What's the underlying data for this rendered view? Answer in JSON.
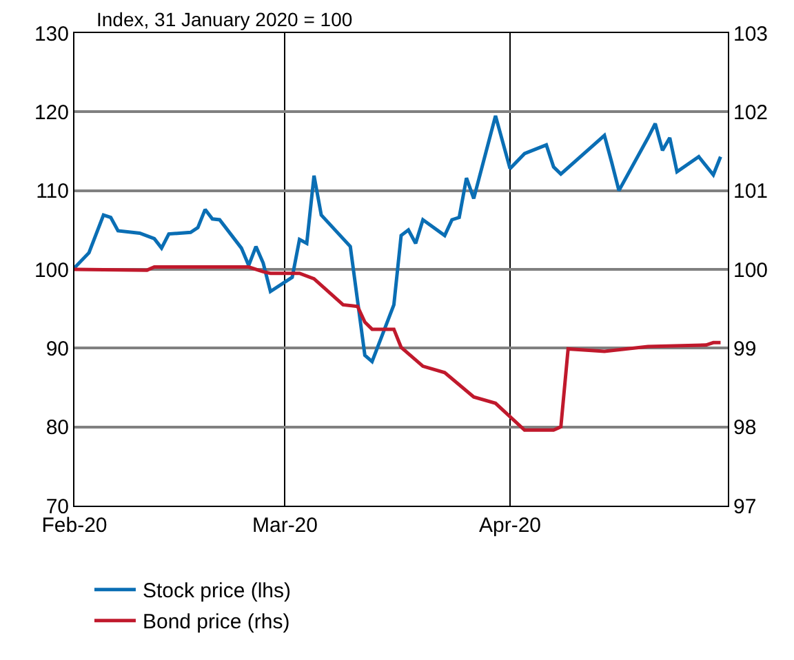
{
  "chart_data": {
    "type": "line",
    "ylabel": "Index, 31 January 2020 = 100",
    "xlim": [
      "2020-02-01",
      "2020-05-01"
    ],
    "xticks": [
      {
        "value": "2020-02-01",
        "label": "Feb-20"
      },
      {
        "value": "2020-03-01",
        "label": "Mar-20"
      },
      {
        "value": "2020-04-01",
        "label": "Apr-20"
      }
    ],
    "ylim": [
      70,
      130
    ],
    "yticks": [
      70,
      80,
      90,
      100,
      110,
      120,
      130
    ],
    "y2lim": [
      97,
      103
    ],
    "y2ticks": [
      97,
      98,
      99,
      100,
      101,
      102,
      103
    ],
    "grid": true,
    "legend": "bottom",
    "series": [
      {
        "name": "Stock price (lhs)",
        "color": "#0a6eb4",
        "x": [
          "2020-02-01",
          "2020-02-03",
          "2020-02-05",
          "2020-02-06",
          "2020-02-07",
          "2020-02-10",
          "2020-02-12",
          "2020-02-13",
          "2020-02-14",
          "2020-02-17",
          "2020-02-18",
          "2020-02-19",
          "2020-02-20",
          "2020-02-21",
          "2020-02-24",
          "2020-02-25",
          "2020-02-26",
          "2020-02-27",
          "2020-02-28",
          "2020-03-02",
          "2020-03-03",
          "2020-03-04",
          "2020-03-05",
          "2020-03-06",
          "2020-03-09",
          "2020-03-10",
          "2020-03-12",
          "2020-03-13",
          "2020-03-16",
          "2020-03-17",
          "2020-03-18",
          "2020-03-19",
          "2020-03-20",
          "2020-03-23",
          "2020-03-24",
          "2020-03-25",
          "2020-03-26",
          "2020-03-27",
          "2020-03-30",
          "2020-04-01",
          "2020-04-03",
          "2020-04-06",
          "2020-04-07",
          "2020-04-08",
          "2020-04-14",
          "2020-04-15",
          "2020-04-16",
          "2020-04-20",
          "2020-04-21",
          "2020-04-22",
          "2020-04-23",
          "2020-04-24",
          "2020-04-27",
          "2020-04-29",
          "2020-04-30"
        ],
        "values": [
          100.2,
          102.1,
          106.9,
          106.6,
          104.9,
          104.6,
          103.9,
          102.7,
          104.5,
          104.7,
          105.3,
          107.6,
          106.4,
          106.3,
          102.7,
          100.5,
          102.9,
          100.8,
          97.2,
          99.0,
          103.8,
          103.3,
          111.9,
          106.9,
          103.9,
          102.9,
          89.1,
          88.3,
          95.5,
          104.3,
          105.0,
          103.3,
          106.3,
          104.3,
          106.3,
          106.6,
          111.6,
          109.0,
          119.5,
          112.8,
          114.7,
          115.8,
          113.0,
          112.1,
          117.0,
          113.6,
          110.0,
          116.7,
          118.5,
          115.1,
          116.7,
          112.4,
          114.3,
          112.0,
          114.3
        ]
      },
      {
        "name": "Bond price (rhs)",
        "color": "#c0192c",
        "axis": "y2",
        "x": [
          "2020-02-01",
          "2020-02-11",
          "2020-02-12",
          "2020-02-25",
          "2020-02-27",
          "2020-02-28",
          "2020-03-03",
          "2020-03-05",
          "2020-03-09",
          "2020-03-11",
          "2020-03-12",
          "2020-03-13",
          "2020-03-16",
          "2020-03-17",
          "2020-03-20",
          "2020-03-23",
          "2020-03-27",
          "2020-03-30",
          "2020-04-03",
          "2020-04-07",
          "2020-04-08",
          "2020-04-09",
          "2020-04-14",
          "2020-04-20",
          "2020-04-28",
          "2020-04-29",
          "2020-04-30"
        ],
        "values": [
          100.0,
          99.99,
          100.03,
          100.03,
          99.97,
          99.95,
          99.95,
          99.88,
          99.55,
          99.53,
          99.33,
          99.24,
          99.24,
          99.01,
          98.77,
          98.69,
          98.38,
          98.3,
          97.96,
          97.96,
          98.0,
          98.99,
          98.96,
          99.02,
          99.04,
          99.07,
          99.07
        ]
      }
    ]
  }
}
